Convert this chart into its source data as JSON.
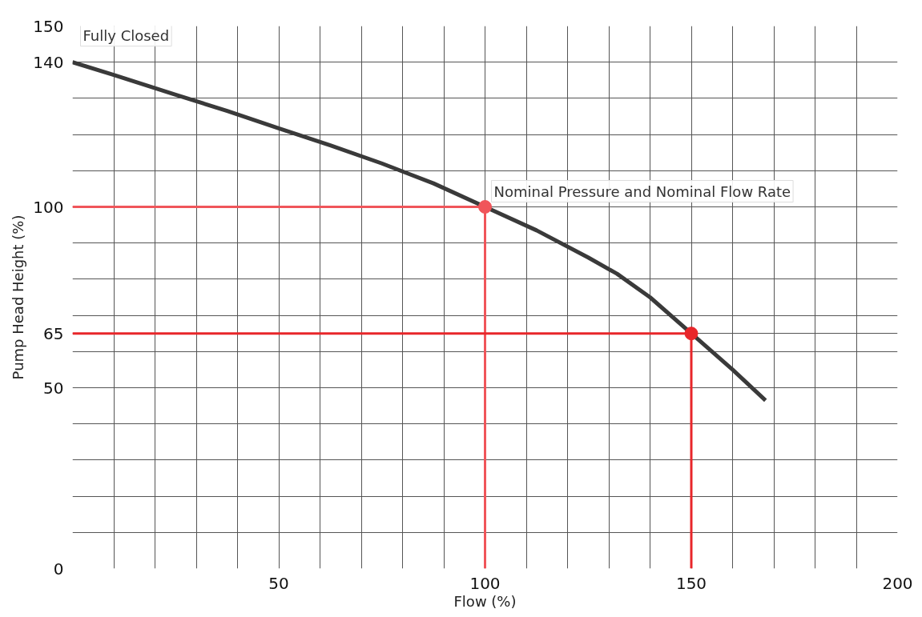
{
  "chart_data": {
    "type": "line",
    "xlabel": "Flow (%)",
    "ylabel": "Pump Head Height (%)",
    "xlim": [
      0,
      200
    ],
    "ylim": [
      0,
      150
    ],
    "xticks": [
      {
        "value": 10,
        "label": null
      },
      {
        "value": 20,
        "label": null
      },
      {
        "value": 30,
        "label": null
      },
      {
        "value": 40,
        "label": null
      },
      50,
      {
        "value": 60,
        "label": null
      },
      {
        "value": 70,
        "label": null
      },
      {
        "value": 80,
        "label": null
      },
      {
        "value": 90,
        "label": null
      },
      100,
      {
        "value": 110,
        "label": null
      },
      {
        "value": 120,
        "label": null
      },
      {
        "value": 130,
        "label": null
      },
      {
        "value": 140,
        "label": null
      },
      150,
      {
        "value": 160,
        "label": null
      },
      {
        "value": 170,
        "label": null
      },
      {
        "value": 180,
        "label": null
      },
      {
        "value": 190,
        "label": null
      },
      200
    ],
    "yticks": [
      0,
      {
        "value": 10,
        "label": null
      },
      {
        "value": 20,
        "label": null
      },
      {
        "value": 30,
        "label": null
      },
      {
        "value": 40,
        "label": null
      },
      50,
      {
        "value": 60,
        "label": null
      },
      65,
      {
        "value": 70,
        "label": null
      },
      {
        "value": 80,
        "label": null
      },
      {
        "value": 90,
        "label": null
      },
      100,
      {
        "value": 110,
        "label": null
      },
      {
        "value": 120,
        "label": null
      },
      {
        "value": 130,
        "label": null
      },
      140,
      150
    ],
    "grid": true,
    "series": [
      {
        "color": "#3a3a3a",
        "x": [
          0,
          10,
          25,
          37.5,
          50,
          62.5,
          75,
          87.5,
          100,
          112.5,
          125,
          132,
          140,
          150,
          160,
          168
        ],
        "values": [
          140,
          136.5,
          131,
          126.5,
          121.7,
          117,
          112,
          106.5,
          100,
          93.5,
          86,
          81.5,
          75,
          65,
          55,
          46.5
        ]
      },
      {
        "color": "#f0555a",
        "x": [
          0,
          100,
          100
        ],
        "values": [
          100,
          100,
          0
        ]
      },
      {
        "color": "#e8262a",
        "x": [
          0,
          150,
          150
        ],
        "values": [
          65,
          65,
          0
        ]
      },
      {
        "type": "scatter",
        "marker": "circle",
        "colors": [
          "#f0555a",
          "#e8262a"
        ],
        "x": [
          100,
          150
        ],
        "values": [
          100,
          65
        ]
      }
    ],
    "annotations": [
      {
        "text": "Fully Closed",
        "x": 0,
        "y": 140
      },
      {
        "text": "Nominal Pressure and Nominal Flow Rate",
        "x": 100,
        "y": 100
      }
    ]
  }
}
